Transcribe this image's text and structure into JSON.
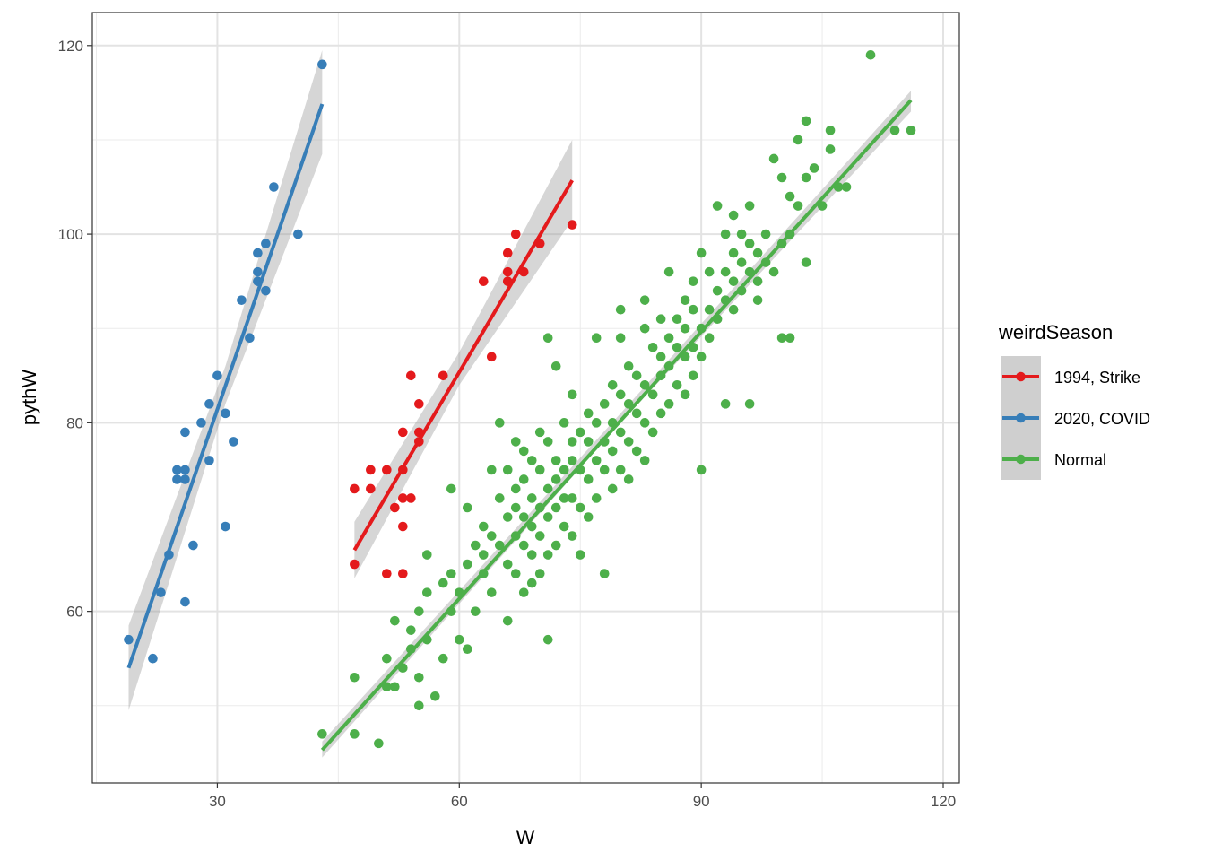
{
  "chart_data": {
    "type": "scatter",
    "xlabel": "W",
    "ylabel": "pythW",
    "xlim": [
      14.5,
      122
    ],
    "ylim": [
      41.8,
      123.5
    ],
    "x_ticks": [
      30,
      60,
      90,
      120
    ],
    "y_ticks": [
      60,
      80,
      100,
      120
    ],
    "x_tick_labels": [
      "30",
      "60",
      "90",
      "120"
    ],
    "y_tick_labels": [
      "60",
      "80",
      "100",
      "120"
    ],
    "grid": true,
    "legend": {
      "title": "weirdSeason",
      "placement": "right",
      "entries": [
        "1994, Strike",
        "2020, COVID",
        "Normal"
      ]
    },
    "series": [
      {
        "name": "1994, Strike",
        "color": "#E41A1C",
        "points": [
          [
            47,
            73
          ],
          [
            47,
            65
          ],
          [
            49,
            75
          ],
          [
            49,
            73
          ],
          [
            51,
            75
          ],
          [
            51,
            64
          ],
          [
            52,
            71
          ],
          [
            53,
            79
          ],
          [
            53,
            75
          ],
          [
            53,
            72
          ],
          [
            53,
            69
          ],
          [
            53,
            64
          ],
          [
            54,
            85
          ],
          [
            54,
            72
          ],
          [
            55,
            82
          ],
          [
            55,
            79
          ],
          [
            55,
            78
          ],
          [
            58,
            85
          ],
          [
            63,
            95
          ],
          [
            64,
            87
          ],
          [
            66,
            98
          ],
          [
            66,
            96
          ],
          [
            66,
            95
          ],
          [
            67,
            100
          ],
          [
            68,
            96
          ],
          [
            70,
            99
          ],
          [
            74,
            101
          ]
        ],
        "fit": {
          "x": [
            47,
            74
          ],
          "y": [
            66.5,
            105.7
          ],
          "ci": [
            [
              47,
              63.5,
              69.5
            ],
            [
              60,
              84.0,
              87.5
            ],
            [
              74,
              101.5,
              110.0
            ]
          ]
        }
      },
      {
        "name": "2020, COVID",
        "color": "#377EB8",
        "points": [
          [
            19,
            57
          ],
          [
            22,
            55
          ],
          [
            23,
            62
          ],
          [
            24,
            66
          ],
          [
            25,
            75
          ],
          [
            25,
            74
          ],
          [
            26,
            79
          ],
          [
            26,
            75
          ],
          [
            26,
            74
          ],
          [
            26,
            61
          ],
          [
            27,
            67
          ],
          [
            28,
            80
          ],
          [
            29,
            82
          ],
          [
            29,
            76
          ],
          [
            30,
            85
          ],
          [
            31,
            81
          ],
          [
            31,
            69
          ],
          [
            32,
            78
          ],
          [
            33,
            93
          ],
          [
            34,
            89
          ],
          [
            35,
            98
          ],
          [
            35,
            96
          ],
          [
            35,
            95
          ],
          [
            36,
            99
          ],
          [
            36,
            94
          ],
          [
            37,
            105
          ],
          [
            40,
            100
          ],
          [
            43,
            118
          ]
        ],
        "fit": {
          "x": [
            19,
            43
          ],
          "y": [
            54.0,
            113.8
          ],
          "ci": [
            [
              19,
              49.5,
              58.5
            ],
            [
              31,
              82.0,
              86.0
            ],
            [
              43,
              108.5,
              119.5
            ]
          ]
        }
      },
      {
        "name": "Normal",
        "color": "#4DAF4A",
        "points": [
          [
            43,
            47
          ],
          [
            47,
            53
          ],
          [
            47,
            47
          ],
          [
            50,
            46
          ],
          [
            51,
            55
          ],
          [
            51,
            52
          ],
          [
            52,
            59
          ],
          [
            52,
            52
          ],
          [
            53,
            54
          ],
          [
            54,
            58
          ],
          [
            54,
            56
          ],
          [
            55,
            60
          ],
          [
            55,
            50
          ],
          [
            55,
            53
          ],
          [
            56,
            62
          ],
          [
            56,
            66
          ],
          [
            56,
            57
          ],
          [
            57,
            51
          ],
          [
            58,
            63
          ],
          [
            58,
            55
          ],
          [
            59,
            73
          ],
          [
            59,
            64
          ],
          [
            59,
            60
          ],
          [
            60,
            57
          ],
          [
            60,
            62
          ],
          [
            61,
            71
          ],
          [
            61,
            65
          ],
          [
            61,
            56
          ],
          [
            62,
            67
          ],
          [
            62,
            60
          ],
          [
            63,
            69
          ],
          [
            63,
            66
          ],
          [
            63,
            64
          ],
          [
            64,
            75
          ],
          [
            64,
            68
          ],
          [
            64,
            62
          ],
          [
            65,
            80
          ],
          [
            65,
            72
          ],
          [
            65,
            67
          ],
          [
            66,
            75
          ],
          [
            66,
            70
          ],
          [
            66,
            65
          ],
          [
            66,
            59
          ],
          [
            67,
            78
          ],
          [
            67,
            73
          ],
          [
            67,
            71
          ],
          [
            67,
            68
          ],
          [
            67,
            64
          ],
          [
            68,
            77
          ],
          [
            68,
            74
          ],
          [
            68,
            70
          ],
          [
            68,
            67
          ],
          [
            68,
            62
          ],
          [
            69,
            76
          ],
          [
            69,
            72
          ],
          [
            69,
            69
          ],
          [
            69,
            66
          ],
          [
            69,
            63
          ],
          [
            70,
            79
          ],
          [
            70,
            75
          ],
          [
            70,
            71
          ],
          [
            70,
            68
          ],
          [
            70,
            64
          ],
          [
            71,
            89
          ],
          [
            71,
            78
          ],
          [
            71,
            73
          ],
          [
            71,
            70
          ],
          [
            71,
            66
          ],
          [
            71,
            57
          ],
          [
            72,
            86
          ],
          [
            72,
            76
          ],
          [
            72,
            74
          ],
          [
            72,
            71
          ],
          [
            72,
            67
          ],
          [
            73,
            80
          ],
          [
            73,
            75
          ],
          [
            73,
            72
          ],
          [
            73,
            69
          ],
          [
            74,
            83
          ],
          [
            74,
            78
          ],
          [
            74,
            76
          ],
          [
            74,
            72
          ],
          [
            74,
            68
          ],
          [
            75,
            79
          ],
          [
            75,
            75
          ],
          [
            75,
            71
          ],
          [
            75,
            66
          ],
          [
            76,
            81
          ],
          [
            76,
            78
          ],
          [
            76,
            74
          ],
          [
            76,
            70
          ],
          [
            77,
            89
          ],
          [
            77,
            80
          ],
          [
            77,
            76
          ],
          [
            77,
            72
          ],
          [
            78,
            82
          ],
          [
            78,
            78
          ],
          [
            78,
            75
          ],
          [
            78,
            64
          ],
          [
            79,
            84
          ],
          [
            79,
            80
          ],
          [
            79,
            77
          ],
          [
            79,
            73
          ],
          [
            80,
            92
          ],
          [
            80,
            89
          ],
          [
            80,
            83
          ],
          [
            80,
            79
          ],
          [
            80,
            75
          ],
          [
            81,
            86
          ],
          [
            81,
            82
          ],
          [
            81,
            78
          ],
          [
            81,
            74
          ],
          [
            82,
            85
          ],
          [
            82,
            81
          ],
          [
            82,
            77
          ],
          [
            83,
            93
          ],
          [
            83,
            90
          ],
          [
            83,
            84
          ],
          [
            83,
            80
          ],
          [
            83,
            76
          ],
          [
            84,
            88
          ],
          [
            84,
            83
          ],
          [
            84,
            79
          ],
          [
            85,
            91
          ],
          [
            85,
            87
          ],
          [
            85,
            85
          ],
          [
            85,
            81
          ],
          [
            86,
            96
          ],
          [
            86,
            89
          ],
          [
            86,
            86
          ],
          [
            86,
            82
          ],
          [
            87,
            91
          ],
          [
            87,
            88
          ],
          [
            87,
            84
          ],
          [
            88,
            93
          ],
          [
            88,
            90
          ],
          [
            88,
            87
          ],
          [
            88,
            83
          ],
          [
            89,
            95
          ],
          [
            89,
            92
          ],
          [
            89,
            88
          ],
          [
            89,
            85
          ],
          [
            90,
            98
          ],
          [
            90,
            90
          ],
          [
            90,
            87
          ],
          [
            90,
            75
          ],
          [
            91,
            96
          ],
          [
            91,
            92
          ],
          [
            91,
            89
          ],
          [
            92,
            103
          ],
          [
            92,
            94
          ],
          [
            92,
            91
          ],
          [
            93,
            100
          ],
          [
            93,
            96
          ],
          [
            93,
            93
          ],
          [
            93,
            82
          ],
          [
            94,
            102
          ],
          [
            94,
            98
          ],
          [
            94,
            95
          ],
          [
            94,
            92
          ],
          [
            95,
            100
          ],
          [
            95,
            97
          ],
          [
            95,
            94
          ],
          [
            96,
            103
          ],
          [
            96,
            99
          ],
          [
            96,
            96
          ],
          [
            96,
            82
          ],
          [
            97,
            98
          ],
          [
            97,
            95
          ],
          [
            97,
            93
          ],
          [
            98,
            100
          ],
          [
            98,
            97
          ],
          [
            99,
            108
          ],
          [
            99,
            96
          ],
          [
            100,
            106
          ],
          [
            100,
            99
          ],
          [
            100,
            89
          ],
          [
            101,
            104
          ],
          [
            101,
            100
          ],
          [
            101,
            89
          ],
          [
            102,
            110
          ],
          [
            102,
            103
          ],
          [
            103,
            112
          ],
          [
            103,
            106
          ],
          [
            103,
            97
          ],
          [
            104,
            107
          ],
          [
            105,
            103
          ],
          [
            106,
            111
          ],
          [
            106,
            109
          ],
          [
            107,
            105
          ],
          [
            108,
            105
          ],
          [
            111,
            119
          ],
          [
            114,
            111
          ],
          [
            116,
            111
          ]
        ],
        "fit": {
          "x": [
            43,
            116
          ],
          "y": [
            45.3,
            114.2
          ],
          "ci": [
            [
              43,
              44.5,
              46.2
            ],
            [
              80,
              80.0,
              81.0
            ],
            [
              116,
              113.0,
              115.2
            ]
          ]
        }
      }
    ]
  }
}
